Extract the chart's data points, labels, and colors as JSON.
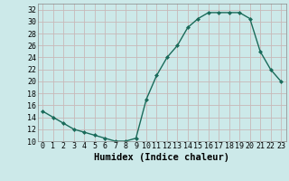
{
  "x": [
    0,
    1,
    2,
    3,
    4,
    5,
    6,
    7,
    8,
    9,
    10,
    11,
    12,
    13,
    14,
    15,
    16,
    17,
    18,
    19,
    20,
    21,
    22,
    23
  ],
  "y": [
    15,
    14,
    13,
    12,
    11.5,
    11,
    10.5,
    10,
    10,
    10.5,
    17,
    21,
    24,
    26,
    29,
    30.5,
    31.5,
    31.5,
    31.5,
    31.5,
    30.5,
    25,
    22,
    20
  ],
  "line_color": "#1a6b5a",
  "marker": "D",
  "marker_size": 2.0,
  "xlabel": "Humidex (Indice chaleur)",
  "ylim": [
    10,
    33
  ],
  "xlim": [
    -0.5,
    23.5
  ],
  "yticks": [
    10,
    12,
    14,
    16,
    18,
    20,
    22,
    24,
    26,
    28,
    30,
    32
  ],
  "xticks": [
    0,
    1,
    2,
    3,
    4,
    5,
    6,
    7,
    8,
    9,
    10,
    11,
    12,
    13,
    14,
    15,
    16,
    17,
    18,
    19,
    20,
    21,
    22,
    23
  ],
  "bg_color": "#cce9e9",
  "grid_color": "#c0d8d8",
  "label_fontsize": 7.5,
  "tick_fontsize": 6.0,
  "line_width": 1.0
}
